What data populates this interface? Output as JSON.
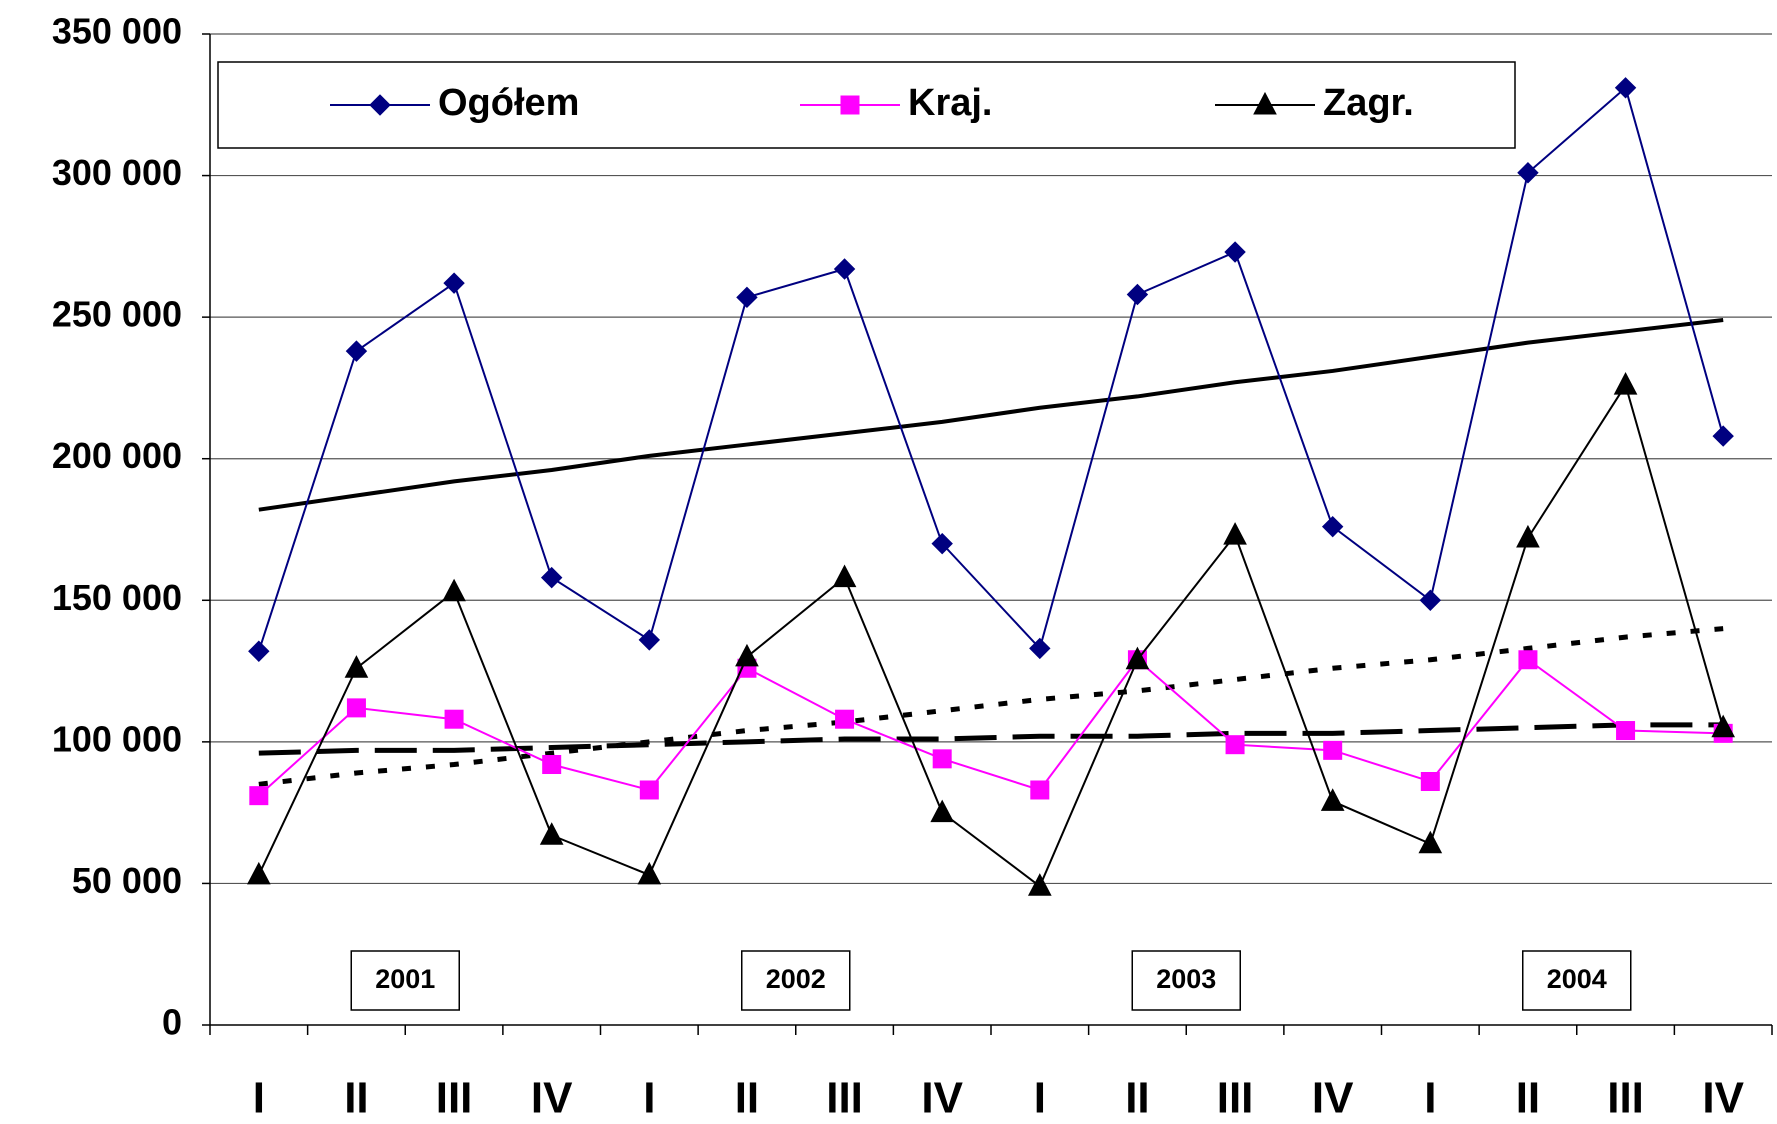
{
  "chart_data": {
    "type": "line",
    "categories": [
      "I",
      "II",
      "III",
      "IV",
      "I",
      "II",
      "III",
      "IV",
      "I",
      "II",
      "III",
      "IV",
      "I",
      "II",
      "III",
      "IV"
    ],
    "ylim": [
      0,
      350000
    ],
    "yticks": [
      0,
      {
        "value": 50000,
        "label": "50 000"
      },
      {
        "value": 100000,
        "label": "100 000"
      },
      {
        "value": 150000,
        "label": "150 000"
      },
      {
        "value": 200000,
        "label": "200 000"
      },
      {
        "value": 250000,
        "label": "250 000"
      },
      {
        "value": 300000,
        "label": "300 000"
      },
      {
        "value": 350000,
        "label": "350 000"
      }
    ],
    "grid": true,
    "series": [
      {
        "name": "Ogółem",
        "color": "#000080",
        "marker": "diamond",
        "values": [
          132000,
          238000,
          262000,
          158000,
          136000,
          257000,
          267000,
          170000,
          133000,
          258000,
          273000,
          176000,
          150000,
          301000,
          331000,
          208000
        ]
      },
      {
        "name": "Kraj.",
        "color": "#ff00ff",
        "marker": "square",
        "values": [
          81000,
          112000,
          108000,
          92000,
          83000,
          126000,
          108000,
          94000,
          83000,
          129000,
          99000,
          97000,
          86000,
          129000,
          104000,
          103000
        ]
      },
      {
        "name": "Zagr.",
        "color": "#000000",
        "marker": "triangle",
        "values": [
          53000,
          126000,
          153000,
          67000,
          53000,
          130000,
          158000,
          75000,
          49000,
          129000,
          173000,
          79000,
          64000,
          172000,
          226000,
          105000
        ]
      }
    ],
    "trends": [
      {
        "color": "#000000",
        "style": "solid",
        "values": [
          182000,
          187000,
          192000,
          196000,
          201000,
          205000,
          209000,
          213000,
          218000,
          222000,
          227000,
          231000,
          236000,
          241000,
          245000,
          249000
        ]
      },
      {
        "color": "#000000",
        "style": "dotted",
        "values": [
          85000,
          89000,
          92000,
          96000,
          100000,
          104000,
          107000,
          111000,
          115000,
          118000,
          122000,
          126000,
          129000,
          133000,
          137000,
          140000
        ]
      },
      {
        "color": "#000000",
        "style": "dashed",
        "values": [
          96000,
          97000,
          97000,
          98000,
          99000,
          100000,
          101000,
          101000,
          102000,
          102000,
          103000,
          103000,
          104000,
          105000,
          106000,
          106000
        ]
      }
    ],
    "annotations": [
      "2001",
      "2002",
      "2003",
      "2004"
    ]
  }
}
